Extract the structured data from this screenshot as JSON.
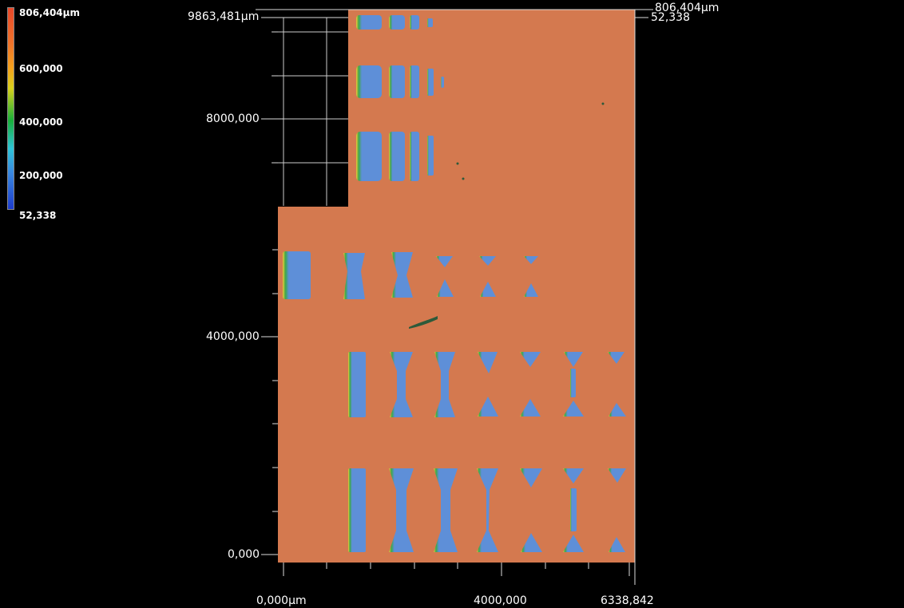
{
  "colorbar": {
    "max_label": "806,404µm",
    "tick_600": "600,000",
    "tick_400": "400,000",
    "tick_200": "200,000",
    "min_label": "52,338",
    "colors": [
      "#e8482a",
      "#f4a21c",
      "#18b03a",
      "#2ec4d8",
      "#1d3ccc"
    ]
  },
  "axes": {
    "y_max": "9863,481µm",
    "y_8000": "8000,000",
    "y_4000": "4000,000",
    "y_0": "0,000",
    "x_0": "0,000µm",
    "x_4000": "4000,000",
    "x_max": "6338,842",
    "z_max": "806,404µm",
    "z_min": "52,338"
  },
  "surface": {
    "base_color": "#d4794f",
    "pit_color": "#5e8fd8",
    "edge_color": "#3a9a4a"
  }
}
